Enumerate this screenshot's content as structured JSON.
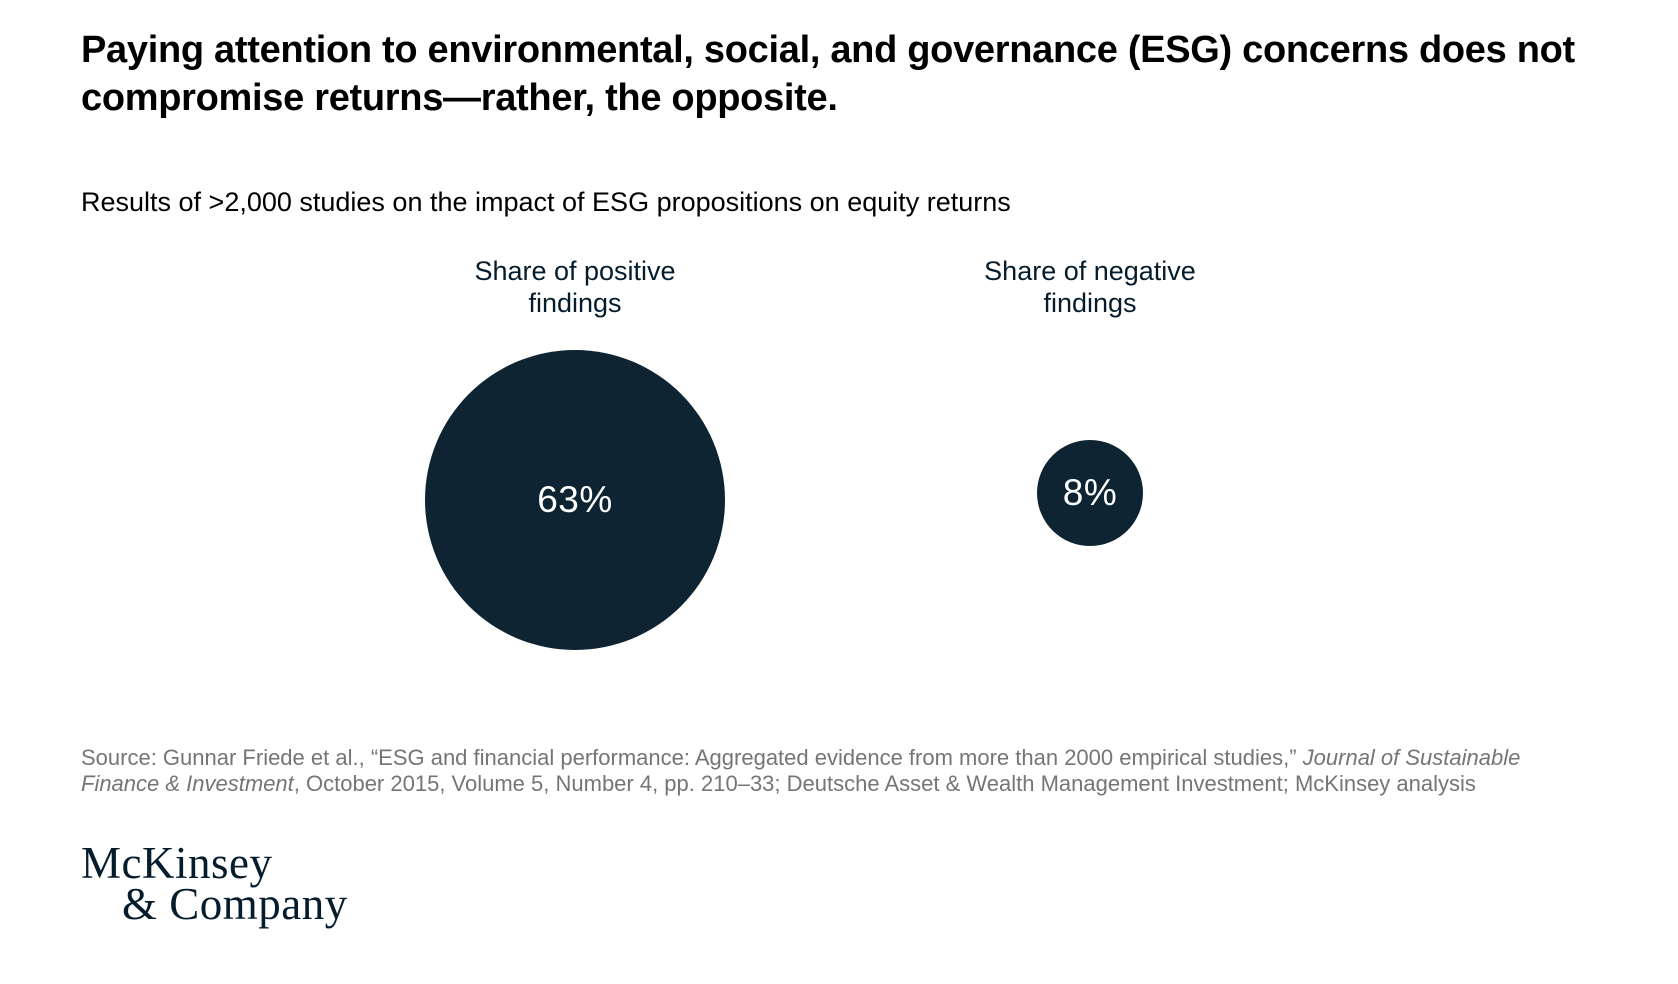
{
  "title": "Paying attention to environmental, social, and governance (ESG) concerns does not compromise returns—rather, the opposite.",
  "subtitle": "Results of >2,000 studies on the impact of ESG propositions on equity returns",
  "chart_data": {
    "type": "bubble",
    "note": "proportional-area circle chart; circle areas scale with the percentage values",
    "categories": [
      "Share of positive findings",
      "Share of negative findings"
    ],
    "values": [
      63,
      8
    ],
    "unit": "%",
    "value_labels": [
      "63%",
      "8%"
    ],
    "title": "Results of >2,000 studies on the impact of ESG propositions on equity returns",
    "bubble_color": "#0e2433",
    "value_text_color": "#ffffff",
    "legend": "none",
    "grid": false
  },
  "source": {
    "prefix": "Source: Gunnar Friede et al., “ESG and financial performance: Aggregated evidence from more than 2000 empirical studies,” ",
    "journal_italic": "Journal of Sustainable Finance & Investment",
    "suffix": ", October 2015, Volume 5, Number 4, pp. 210–33; Deutsche Asset & Wealth Management Investment; McKinsey analysis"
  },
  "logo": {
    "line1": "McKinsey",
    "line2": "& Company"
  },
  "colors": {
    "background": "#ffffff",
    "title_text": "#000000",
    "label_text": "#051c2c",
    "bubble_fill": "#0e2433",
    "bubble_value_text": "#ffffff",
    "source_text": "#757575",
    "logo_text": "#051c2c"
  }
}
